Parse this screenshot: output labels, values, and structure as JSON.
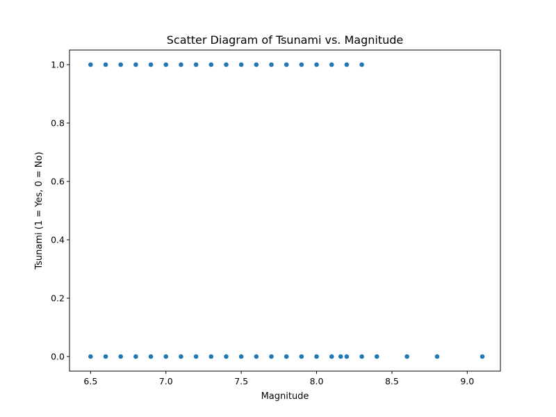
{
  "chart_data": {
    "type": "scatter",
    "title": "Scatter Diagram of Tsunami vs. Magnitude",
    "xlabel": "Magnitude",
    "ylabel": "Tsunami (1 = Yes, 0 = No)",
    "xlim": [
      6.36,
      9.22
    ],
    "ylim": [
      -0.05,
      1.05
    ],
    "xticks": [
      6.5,
      7.0,
      7.5,
      8.0,
      8.5,
      9.0
    ],
    "xtick_labels": [
      "6.5",
      "7.0",
      "7.5",
      "8.0",
      "8.5",
      "9.0"
    ],
    "yticks": [
      0.0,
      0.2,
      0.4,
      0.6,
      0.8,
      1.0
    ],
    "ytick_labels": [
      "0.0",
      "0.2",
      "0.4",
      "0.6",
      "0.8",
      "1.0"
    ],
    "grid": false,
    "marker_color": "#1f77b4",
    "points": [
      {
        "x": 6.5,
        "y": 1
      },
      {
        "x": 6.6,
        "y": 1
      },
      {
        "x": 6.7,
        "y": 1
      },
      {
        "x": 6.8,
        "y": 1
      },
      {
        "x": 6.9,
        "y": 1
      },
      {
        "x": 7.0,
        "y": 1
      },
      {
        "x": 7.1,
        "y": 1
      },
      {
        "x": 7.2,
        "y": 1
      },
      {
        "x": 7.3,
        "y": 1
      },
      {
        "x": 7.4,
        "y": 1
      },
      {
        "x": 7.5,
        "y": 1
      },
      {
        "x": 7.6,
        "y": 1
      },
      {
        "x": 7.7,
        "y": 1
      },
      {
        "x": 7.8,
        "y": 1
      },
      {
        "x": 7.9,
        "y": 1
      },
      {
        "x": 8.0,
        "y": 1
      },
      {
        "x": 8.1,
        "y": 1
      },
      {
        "x": 8.2,
        "y": 1
      },
      {
        "x": 8.3,
        "y": 1
      },
      {
        "x": 6.5,
        "y": 0
      },
      {
        "x": 6.6,
        "y": 0
      },
      {
        "x": 6.7,
        "y": 0
      },
      {
        "x": 6.8,
        "y": 0
      },
      {
        "x": 6.9,
        "y": 0
      },
      {
        "x": 7.0,
        "y": 0
      },
      {
        "x": 7.1,
        "y": 0
      },
      {
        "x": 7.2,
        "y": 0
      },
      {
        "x": 7.3,
        "y": 0
      },
      {
        "x": 7.4,
        "y": 0
      },
      {
        "x": 7.5,
        "y": 0
      },
      {
        "x": 7.6,
        "y": 0
      },
      {
        "x": 7.7,
        "y": 0
      },
      {
        "x": 7.8,
        "y": 0
      },
      {
        "x": 7.9,
        "y": 0
      },
      {
        "x": 8.0,
        "y": 0
      },
      {
        "x": 8.1,
        "y": 0
      },
      {
        "x": 8.16,
        "y": 0
      },
      {
        "x": 8.2,
        "y": 0
      },
      {
        "x": 8.3,
        "y": 0
      },
      {
        "x": 8.4,
        "y": 0
      },
      {
        "x": 8.6,
        "y": 0
      },
      {
        "x": 8.8,
        "y": 0
      },
      {
        "x": 9.1,
        "y": 0
      }
    ]
  }
}
